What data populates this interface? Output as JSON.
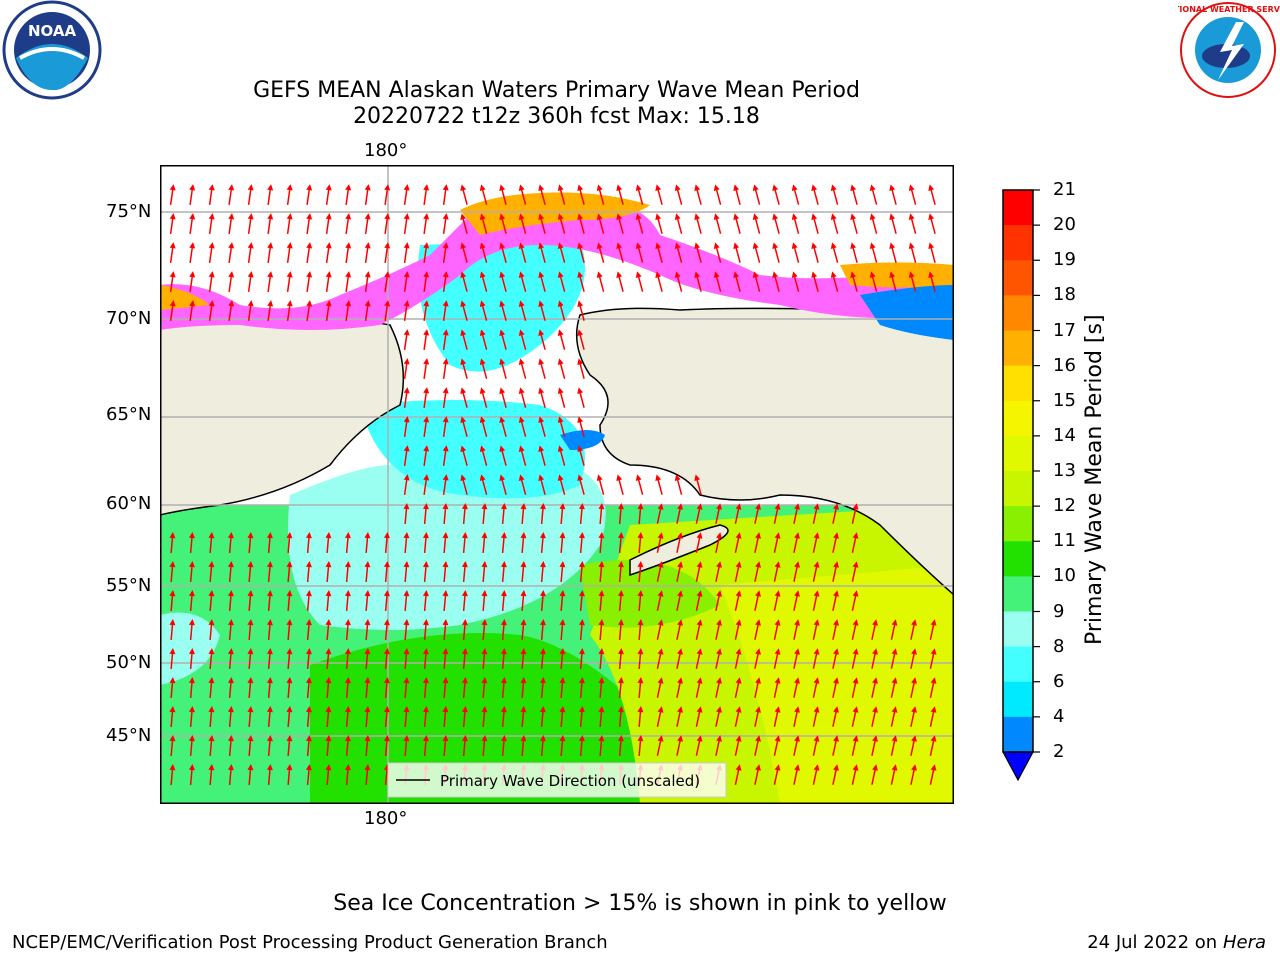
{
  "header": {
    "title_line1": "GEFS MEAN Alaskan Waters Primary Wave Mean Period",
    "title_line2": "20220722 t12z 360h fcst   Max: 15.18",
    "left_logo": {
      "name": "noaa-logo",
      "text": "NOAA"
    },
    "right_logo": {
      "name": "nws-logo",
      "text": "NATIONAL WEATHER SERVICE"
    }
  },
  "map": {
    "lon_label_top": "180°",
    "lon_label_bottom": "180°",
    "lat_labels": [
      "75°N",
      "70°N",
      "65°N",
      "60°N",
      "55°N",
      "50°N",
      "45°N"
    ],
    "legend_label": "Primary Wave Direction (unscaled)",
    "colors": {
      "land": "#efedde",
      "arrow": "#ff0000",
      "grid": "#b0b0b0"
    }
  },
  "colorbar": {
    "label": "Primary Wave Mean Period [s]",
    "ticks": [
      "21",
      "20",
      "19",
      "18",
      "17",
      "16",
      "15",
      "14",
      "13",
      "12",
      "11",
      "10",
      "9",
      "8",
      "6",
      "4",
      "2"
    ],
    "colors": [
      "#ff0000",
      "#ff3300",
      "#ff5500",
      "#ff8800",
      "#ffb000",
      "#ffe000",
      "#f5f500",
      "#e0f800",
      "#c8f500",
      "#88f000",
      "#22e000",
      "#44f27a",
      "#9afff0",
      "#44ffff",
      "#00eaff",
      "#0088ff"
    ],
    "extend_color": "#0000ff"
  },
  "caption": "Sea Ice Concentration > 15% is shown in pink to yellow",
  "footer": {
    "left": "NCEP/EMC/Verification Post Processing Product Generation Branch",
    "right_prefix": "24 Jul 2022 on ",
    "right_host": "Hera"
  }
}
